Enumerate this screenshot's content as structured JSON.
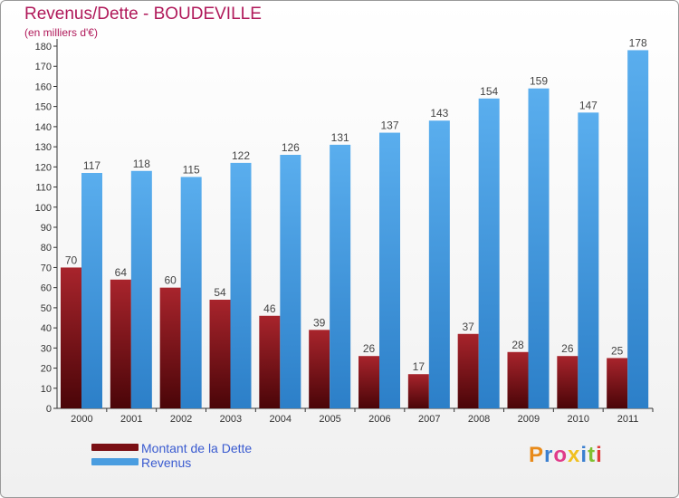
{
  "header": {
    "title": "Revenus/Dette - BOUDEVILLE",
    "subtitle": "(en milliers d'€)"
  },
  "legend": {
    "items": [
      {
        "label": "Montant de la Dette",
        "color": "#7a0f14"
      },
      {
        "label": "Revenus",
        "color": "#4a9de0"
      }
    ]
  },
  "logo": {
    "text": "Proxiti"
  },
  "chart_data": {
    "type": "bar",
    "categories": [
      "2000",
      "2001",
      "2002",
      "2003",
      "2004",
      "2005",
      "2006",
      "2007",
      "2008",
      "2009",
      "2010",
      "2011"
    ],
    "series": [
      {
        "name": "Montant de la Dette",
        "color": "#7a0f14",
        "values": [
          70,
          64,
          60,
          54,
          46,
          39,
          26,
          17,
          37,
          28,
          26,
          25
        ]
      },
      {
        "name": "Revenus",
        "color": "#4a9de0",
        "values": [
          117,
          118,
          115,
          122,
          126,
          131,
          137,
          143,
          154,
          159,
          147,
          178
        ]
      }
    ],
    "ylim": [
      0,
      180
    ],
    "yticks": [
      0,
      10,
      20,
      30,
      40,
      50,
      60,
      70,
      80,
      90,
      100,
      110,
      120,
      130,
      140,
      150,
      160,
      170,
      180
    ],
    "grid": false,
    "legend_position": "bottom-left"
  }
}
